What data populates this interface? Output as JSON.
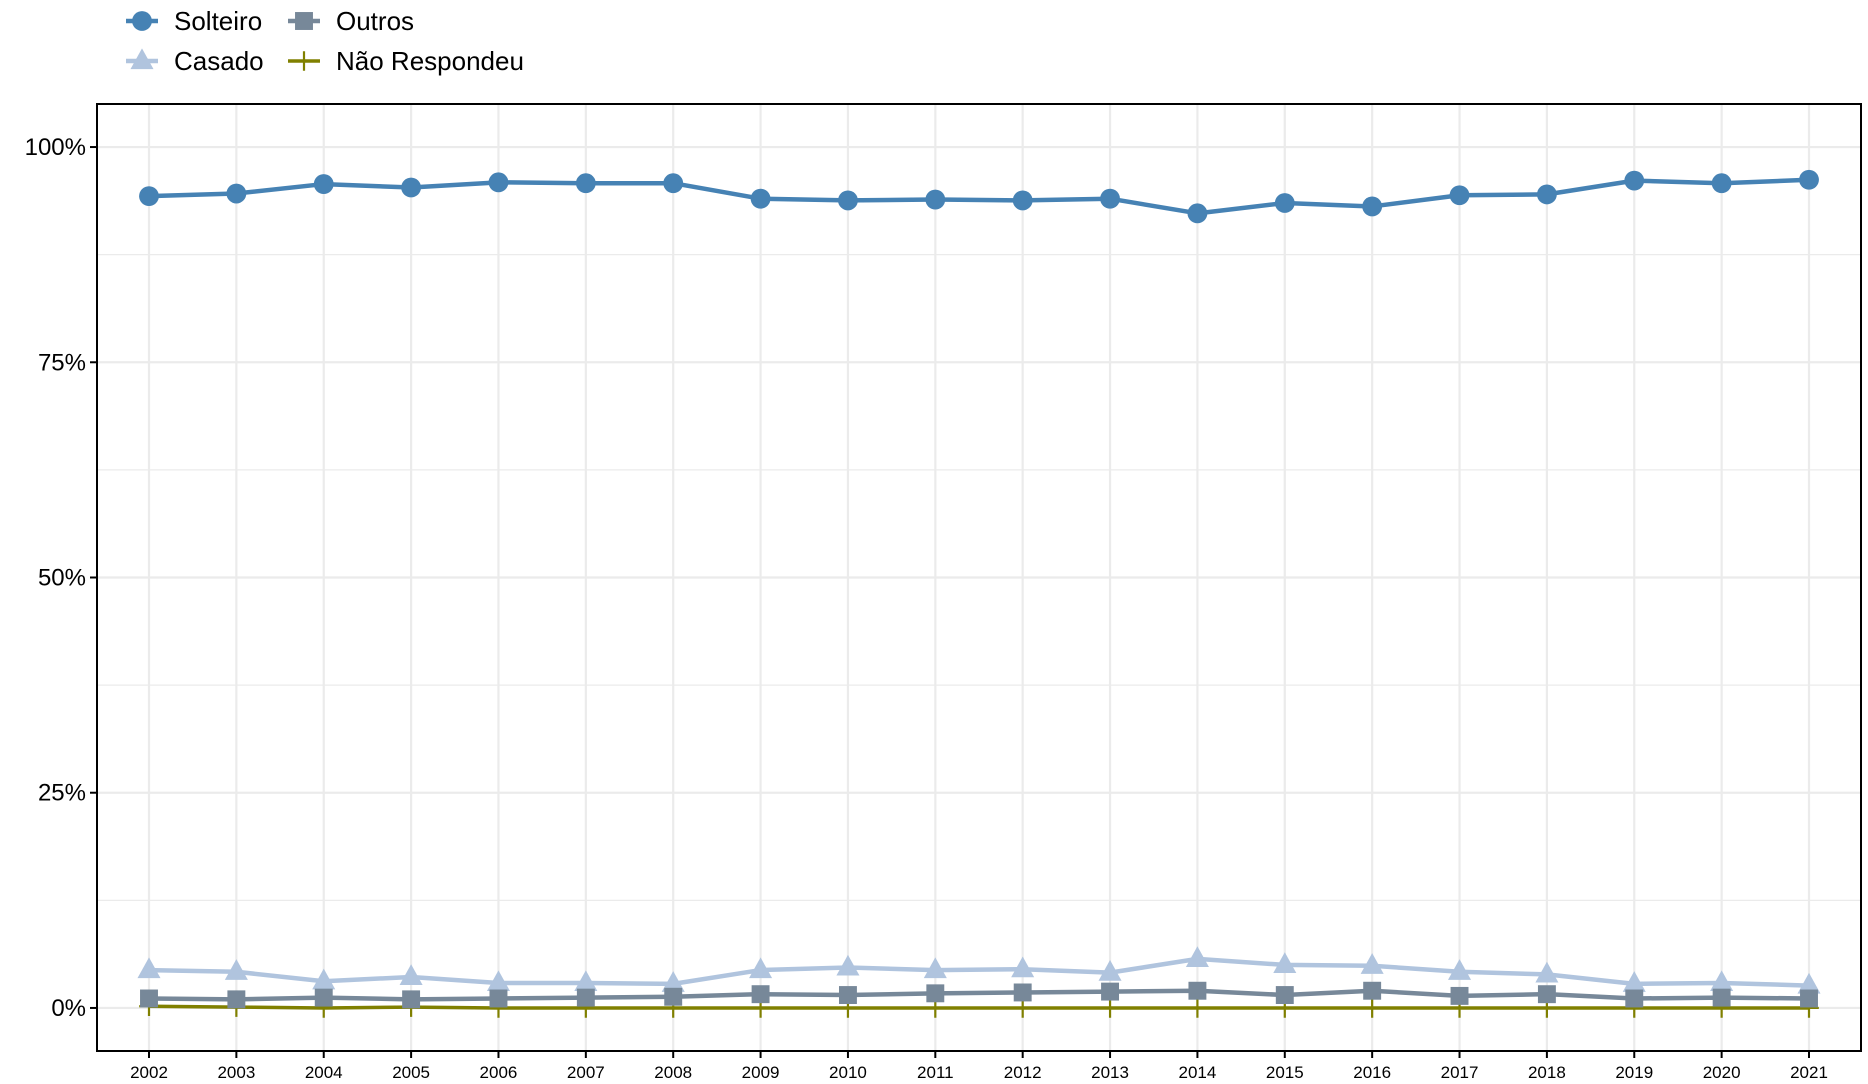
{
  "chart_data": {
    "type": "line",
    "title": "",
    "xlabel": "",
    "ylabel": "",
    "x": [
      "2002",
      "2003",
      "2004",
      "2005",
      "2006",
      "2007",
      "2008",
      "2009",
      "2010",
      "2011",
      "2012",
      "2013",
      "2014",
      "2015",
      "2016",
      "2017",
      "2018",
      "2019",
      "2020",
      "2021"
    ],
    "ylim": [
      -0.05,
      1.05
    ],
    "yticks": [
      0,
      0.25,
      0.5,
      0.75,
      1.0
    ],
    "ytick_labels": [
      "0%",
      "25%",
      "50%",
      "75%",
      "100%"
    ],
    "grid": true,
    "legend_position": "top-left",
    "series": [
      {
        "name": "Solteiro",
        "color": "#4682B4",
        "marker": "circle",
        "values": [
          0.943,
          0.946,
          0.957,
          0.953,
          0.959,
          0.958,
          0.958,
          0.94,
          0.938,
          0.939,
          0.938,
          0.94,
          0.923,
          0.935,
          0.931,
          0.944,
          0.945,
          0.961,
          0.958,
          0.962
        ]
      },
      {
        "name": "Casado",
        "color": "#B0C4DE",
        "marker": "triangle",
        "values": [
          0.044,
          0.042,
          0.031,
          0.036,
          0.029,
          0.029,
          0.028,
          0.044,
          0.047,
          0.044,
          0.045,
          0.041,
          0.057,
          0.05,
          0.049,
          0.042,
          0.039,
          0.028,
          0.029,
          0.026
        ]
      },
      {
        "name": "Outros",
        "color": "#778899",
        "marker": "square",
        "values": [
          0.011,
          0.01,
          0.012,
          0.01,
          0.011,
          0.012,
          0.013,
          0.016,
          0.015,
          0.017,
          0.018,
          0.019,
          0.02,
          0.015,
          0.02,
          0.014,
          0.016,
          0.011,
          0.012,
          0.011
        ]
      },
      {
        "name": "Não Respondeu",
        "color": "#808000",
        "marker": "plus",
        "values": [
          0.002,
          0.001,
          0.0,
          0.001,
          0.0,
          0.0,
          0.0,
          0.0,
          0.0,
          0.0,
          0.0,
          0.0,
          0.0,
          0.0,
          0.0,
          0.0,
          0.0,
          0.0,
          0.0,
          0.0
        ]
      }
    ]
  }
}
